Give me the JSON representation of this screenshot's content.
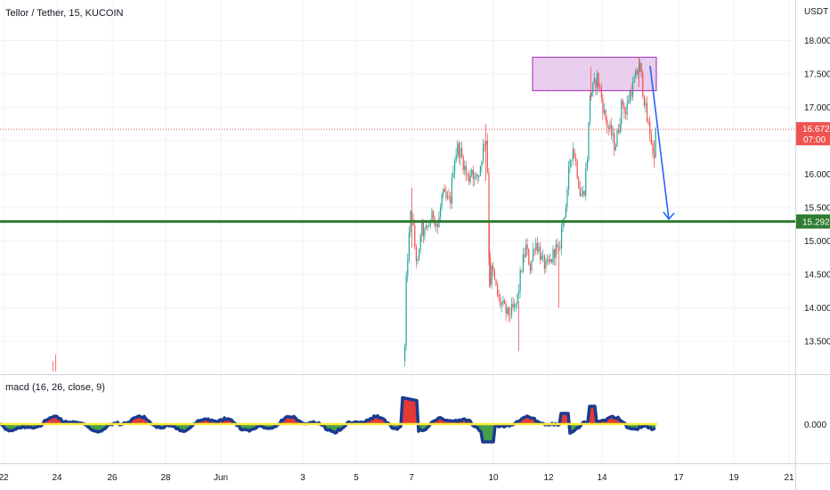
{
  "chart_data": [
    {
      "type": "candlestick",
      "title": "Tellor / Tether, 15, KUCOIN",
      "currency_label": "USDT",
      "ylim": [
        13.15,
        18.25
      ],
      "y_ticks": [
        "18.000",
        "17.500",
        "17.000",
        "16.500",
        "16.000",
        "15.500",
        "15.000",
        "14.500",
        "14.000",
        "13.500"
      ],
      "y_tick_values": [
        18.0,
        17.5,
        17.0,
        16.5,
        16.0,
        15.5,
        15.0,
        14.5,
        14.0,
        13.5
      ],
      "x_ticks": [
        "22",
        "24",
        "26",
        "28",
        "Jun",
        "3",
        "5",
        "7",
        "10",
        "12",
        "14",
        "17",
        "19",
        "21"
      ],
      "grid": true,
      "last_price": "16.672",
      "last_price_value": 16.672,
      "countdown": "07:00",
      "support_level": "15.292",
      "support_value": 15.292,
      "resistance_zone": {
        "from": 17.25,
        "to": 17.75
      },
      "projected_move": {
        "from": 17.62,
        "to": 15.3
      },
      "up_color": "#26a69a",
      "down_color": "#ef5350",
      "support_color": "#2e7d32",
      "zone_color": "#e1bee7",
      "arrow_color": "#2962ff"
    },
    {
      "type": "area",
      "indicator": "macd (16, 26, close, 9)",
      "y_ticks": [
        "0.000"
      ],
      "zero_value": 0.0,
      "line_color": "#1a3b8f",
      "signal_color": "#ffeb3b",
      "positive_fill": "#e53935",
      "negative_fill": "#43a047"
    }
  ]
}
